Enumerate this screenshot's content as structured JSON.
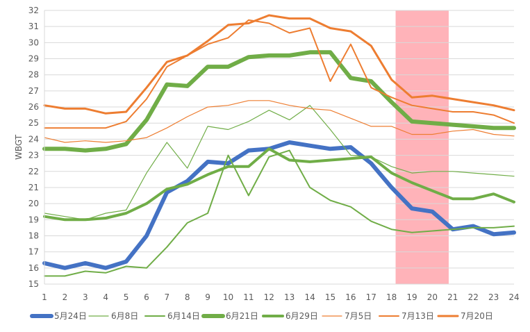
{
  "chart_data": {
    "type": "line",
    "ylabel": "WBGT",
    "xlabel": "",
    "x": [
      1,
      2,
      3,
      4,
      5,
      6,
      7,
      8,
      9,
      10,
      11,
      12,
      13,
      14,
      15,
      16,
      17,
      18,
      19,
      20,
      21,
      22,
      23,
      24
    ],
    "ylim": [
      15,
      32
    ],
    "yticks": [
      15,
      16,
      17,
      18,
      19,
      20,
      21,
      22,
      23,
      24,
      25,
      26,
      27,
      28,
      29,
      30,
      31,
      32
    ],
    "grid": "horizontal",
    "legend_position": "bottom",
    "highlight_band": {
      "x_from": 18.2,
      "x_to": 20.8,
      "color": "#ffb3b9"
    },
    "series": [
      {
        "name": "5月24日",
        "color": "#4472c4",
        "width": 6,
        "values": [
          16.3,
          16.0,
          16.3,
          16.0,
          16.4,
          18.0,
          20.7,
          21.4,
          22.6,
          22.5,
          23.3,
          23.4,
          23.8,
          23.6,
          23.4,
          23.5,
          22.5,
          21.0,
          19.7,
          19.5,
          18.4,
          18.6,
          18.1,
          18.2
        ]
      },
      {
        "name": "6月8日",
        "color": "#70ad47",
        "width": 1.2,
        "values": [
          19.4,
          19.2,
          19.0,
          19.4,
          19.6,
          21.9,
          23.8,
          22.2,
          24.8,
          24.6,
          25.1,
          25.8,
          25.2,
          26.1,
          24.6,
          23.0,
          22.9,
          22.3,
          21.9,
          22.0,
          22.0,
          21.9,
          21.8,
          21.7
        ]
      },
      {
        "name": "6月14日",
        "color": "#70ad47",
        "width": 2,
        "values": [
          15.5,
          15.5,
          15.8,
          15.7,
          16.1,
          16.0,
          17.3,
          18.8,
          19.4,
          23.0,
          20.5,
          22.9,
          23.3,
          21.0,
          20.2,
          19.8,
          18.9,
          18.4,
          18.2,
          18.3,
          18.4,
          18.5,
          18.5,
          18.6
        ]
      },
      {
        "name": "6月21日",
        "color": "#70ad47",
        "width": 6,
        "values": [
          23.4,
          23.4,
          23.3,
          23.4,
          23.7,
          25.2,
          27.4,
          27.3,
          28.5,
          28.5,
          29.1,
          29.2,
          29.2,
          29.4,
          29.4,
          27.8,
          27.6,
          26.3,
          25.1,
          25.0,
          24.9,
          24.8,
          24.7,
          24.7
        ]
      },
      {
        "name": "6月29日",
        "color": "#70ad47",
        "width": 4,
        "values": [
          19.2,
          19.0,
          19.0,
          19.1,
          19.4,
          20.0,
          20.9,
          21.2,
          21.8,
          22.3,
          22.3,
          23.4,
          22.7,
          22.6,
          22.7,
          22.8,
          22.9,
          21.9,
          21.3,
          20.8,
          20.3,
          20.3,
          20.6,
          20.1
        ]
      },
      {
        "name": "7月5日",
        "color": "#ed7d31",
        "width": 1.2,
        "values": [
          24.1,
          23.8,
          23.9,
          23.8,
          23.9,
          24.1,
          24.7,
          25.4,
          26.0,
          26.1,
          26.4,
          26.4,
          26.1,
          25.9,
          25.8,
          25.3,
          24.8,
          24.8,
          24.3,
          24.3,
          24.5,
          24.6,
          24.3,
          24.2
        ]
      },
      {
        "name": "7月13日",
        "color": "#ed7d31",
        "width": 2,
        "values": [
          24.7,
          24.7,
          24.7,
          24.7,
          25.1,
          26.5,
          28.5,
          29.2,
          29.9,
          30.3,
          31.4,
          31.2,
          30.6,
          30.9,
          27.6,
          29.9,
          27.2,
          26.6,
          26.1,
          25.9,
          25.7,
          25.7,
          25.5,
          25.0
        ]
      },
      {
        "name": "7月20日",
        "color": "#ed7d31",
        "width": 3,
        "values": [
          26.1,
          25.9,
          25.9,
          25.6,
          25.7,
          27.2,
          28.8,
          29.2,
          30.1,
          31.1,
          31.2,
          31.7,
          31.5,
          31.5,
          30.9,
          30.7,
          29.8,
          27.7,
          26.6,
          26.7,
          26.5,
          26.3,
          26.1,
          25.8
        ]
      }
    ]
  }
}
